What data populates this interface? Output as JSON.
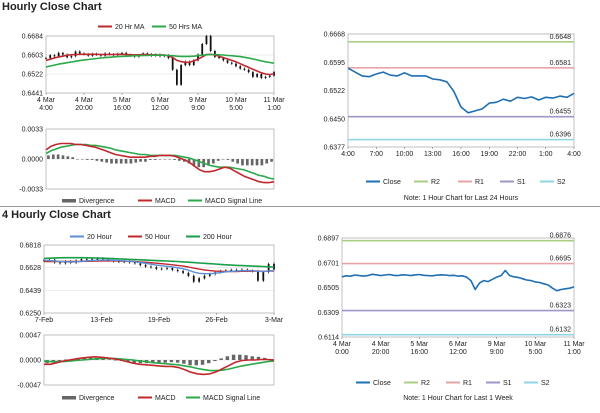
{
  "sections": {
    "hourly_title": "Hourly Close Chart",
    "four_hourly_title": "4 Hourly Close Chart"
  },
  "colors": {
    "close": "#1f6fb2",
    "ma_short": "#c0282d",
    "ma_long": "#2ba84a",
    "ma_200": "#1a9e4a",
    "ma20h": "#5b8fd8",
    "r2": "#a9cf83",
    "r1": "#e7a4a8",
    "s1": "#9b97c9",
    "s2": "#8ed4e3",
    "divergence": "#666666",
    "macd": "#c0282d",
    "signal": "#2ba84a",
    "candle": "#111111"
  },
  "chart_data": [
    {
      "id": "hourly_price_ma",
      "type": "line",
      "title": "",
      "legend": [
        "20 Hr MA",
        "50 Hrs MA"
      ],
      "y_ticks": [
        "0.6684",
        "0.6603",
        "0.6522",
        "0.6441"
      ],
      "ylim": [
        0.6441,
        0.6684
      ],
      "x_ticks": [
        [
          "4 Mar",
          "4:00"
        ],
        [
          "4 Mar",
          "20:00"
        ],
        [
          "5 Mar",
          "16:00"
        ],
        [
          "6 Mar",
          "12:00"
        ],
        [
          "9 Mar",
          "9:00"
        ],
        [
          "10 Mar",
          "5:00"
        ],
        [
          "11 Mar",
          "1:00"
        ]
      ],
      "close": [
        0.659,
        0.6602,
        0.6597,
        0.6612,
        0.6605,
        0.6593,
        0.6598,
        0.6618,
        0.661,
        0.6606,
        0.66,
        0.6608,
        0.6604,
        0.66,
        0.661,
        0.6606,
        0.6602,
        0.6608,
        0.6612,
        0.6604,
        0.66,
        0.6596,
        0.6603,
        0.661,
        0.6606,
        0.66,
        0.6605,
        0.6598,
        0.6602,
        0.659,
        0.654,
        0.6476,
        0.656,
        0.6575,
        0.656,
        0.658,
        0.6605,
        0.665,
        0.6684,
        0.662,
        0.6595,
        0.659,
        0.658,
        0.657,
        0.6566,
        0.6555,
        0.6545,
        0.654,
        0.653,
        0.651,
        0.6522,
        0.6505,
        0.651,
        0.6515,
        0.653
      ],
      "ma_short": [
        0.658,
        0.6585,
        0.659,
        0.6595,
        0.6598,
        0.6602,
        0.6604,
        0.6605,
        0.6606,
        0.6606,
        0.6606,
        0.6606,
        0.6606,
        0.6605,
        0.6605,
        0.6605,
        0.6605,
        0.6606,
        0.6606,
        0.6605,
        0.6604,
        0.6604,
        0.6604,
        0.6605,
        0.6605,
        0.6604,
        0.6604,
        0.6603,
        0.6603,
        0.66,
        0.6592,
        0.658,
        0.6575,
        0.6572,
        0.6572,
        0.6578,
        0.6585,
        0.6595,
        0.6605,
        0.6606,
        0.6603,
        0.6598,
        0.6592,
        0.6586,
        0.658,
        0.6574,
        0.6566,
        0.6558,
        0.655,
        0.6542,
        0.6535,
        0.6527,
        0.6522,
        0.652,
        0.6522
      ],
      "ma_long": [
        0.6552,
        0.6556,
        0.656,
        0.6564,
        0.6567,
        0.657,
        0.6573,
        0.6576,
        0.6579,
        0.6582,
        0.6584,
        0.6586,
        0.6588,
        0.659,
        0.6592,
        0.6593,
        0.6595,
        0.6596,
        0.6597,
        0.6598,
        0.6599,
        0.66,
        0.66,
        0.6601,
        0.6601,
        0.6602,
        0.6602,
        0.6602,
        0.6602,
        0.6601,
        0.66,
        0.6598,
        0.6597,
        0.6597,
        0.6597,
        0.6598,
        0.66,
        0.6602,
        0.6604,
        0.6605,
        0.6605,
        0.6604,
        0.6603,
        0.6601,
        0.66,
        0.6598,
        0.6596,
        0.6593,
        0.659,
        0.6586,
        0.6582,
        0.6578,
        0.6574,
        0.6571,
        0.6568
      ]
    },
    {
      "id": "hourly_macd",
      "type": "line",
      "legend": [
        "Divergence",
        "MACD",
        "MACD Signal Line"
      ],
      "y_ticks": [
        "0.0033",
        "0.0000",
        "-0.0033"
      ],
      "ylim": [
        -0.0033,
        0.0033
      ],
      "macd": [
        0.001,
        0.0014,
        0.0016,
        0.0017,
        0.0017,
        0.0017,
        0.0016,
        0.0016,
        0.0015,
        0.0014,
        0.0013,
        0.0011,
        0.0009,
        0.0007,
        0.0005,
        0.0004,
        0.0003,
        0.0002,
        0.0002,
        0.0002,
        0.0002,
        0.0003,
        0.0003,
        0.0004,
        0.0004,
        0.0004,
        0.0003,
        0.0001,
        -0.0001,
        -0.0004,
        -0.0008,
        -0.0012,
        -0.0014,
        -0.0014,
        -0.0013,
        -0.0011,
        -0.0009,
        -0.001,
        -0.0013,
        -0.0016,
        -0.0019,
        -0.0021,
        -0.0023,
        -0.0025,
        -0.0026,
        -0.0026,
        -0.0025
      ],
      "signal": [
        0.0006,
        0.0009,
        0.0011,
        0.0013,
        0.0014,
        0.0015,
        0.0016,
        0.0016,
        0.0016,
        0.0015,
        0.0015,
        0.0014,
        0.0013,
        0.0012,
        0.001,
        0.0009,
        0.0008,
        0.0007,
        0.0006,
        0.0005,
        0.0005,
        0.0004,
        0.0004,
        0.0004,
        0.0004,
        0.0004,
        0.0004,
        0.0003,
        0.0002,
        0.0001,
        -0.0001,
        -0.0003,
        -0.0005,
        -0.0007,
        -0.0008,
        -0.0009,
        -0.0009,
        -0.0009,
        -0.001,
        -0.0011,
        -0.0012,
        -0.0014,
        -0.0016,
        -0.0018,
        -0.0019,
        -0.0021,
        -0.0022
      ],
      "divergence": [
        0.0004,
        0.0005,
        0.0005,
        0.0004,
        0.0003,
        0.0002,
        0.0,
        0.0,
        -0.0001,
        -0.0001,
        -0.0002,
        -0.0003,
        -0.0004,
        -0.0005,
        -0.0005,
        -0.0005,
        -0.0005,
        -0.0005,
        -0.0004,
        -0.0003,
        -0.0003,
        -0.0001,
        -0.0001,
        0.0,
        0.0,
        0.0,
        -0.0001,
        -0.0002,
        -0.0003,
        -0.0005,
        -0.0007,
        -0.0009,
        -0.0009,
        -0.0007,
        -0.0005,
        -0.0002,
        0.0,
        -0.0001,
        -0.0003,
        -0.0005,
        -0.0007,
        -0.0007,
        -0.0007,
        -0.0007,
        -0.0007,
        -0.0005,
        -0.0003
      ]
    },
    {
      "id": "hourly_levels",
      "type": "line",
      "legend": [
        "Close",
        "R2",
        "R1",
        "S1",
        "S2"
      ],
      "y_ticks": [
        "0.6668",
        "0.6595",
        "0.6522",
        "0.6450",
        "0.6377"
      ],
      "ylim": [
        0.6377,
        0.6668
      ],
      "x_ticks": [
        "4:00",
        "7:00",
        "10:00",
        "13:00",
        "16:00",
        "19:00",
        "22:00",
        "1:00",
        "4:00"
      ],
      "levels": {
        "R2": 0.6648,
        "R1": 0.6581,
        "S1": 0.6455,
        "S2": 0.6396
      },
      "level_labels": {
        "R2": "0.6648",
        "R1": "0.6581",
        "S1": "0.6455",
        "S2": "0.6396"
      },
      "close": [
        0.658,
        0.657,
        0.656,
        0.6558,
        0.6565,
        0.657,
        0.6562,
        0.656,
        0.6568,
        0.656,
        0.656,
        0.656,
        0.6552,
        0.655,
        0.6545,
        0.652,
        0.648,
        0.6465,
        0.647,
        0.6475,
        0.649,
        0.6492,
        0.65,
        0.6495,
        0.6505,
        0.6502,
        0.6506,
        0.6498,
        0.6505,
        0.6503,
        0.6508,
        0.6505,
        0.6515
      ],
      "note": "Note: 1 Hour Chart for Last 24 Hours"
    },
    {
      "id": "four_hourly_price_ma",
      "type": "line",
      "legend": [
        "20 Hour",
        "50 Hour",
        "200 Hour"
      ],
      "y_ticks": [
        "0.6818",
        "0.6628",
        "0.6439",
        "0.6250"
      ],
      "ylim": [
        0.625,
        0.6818
      ],
      "x_ticks": [
        "7-Feb",
        "13-Feb",
        "19-Feb",
        "26-Feb",
        "3-Mar"
      ],
      "close": [
        0.669,
        0.6695,
        0.6672,
        0.6665,
        0.668,
        0.667,
        0.6688,
        0.67,
        0.6702,
        0.6695,
        0.6705,
        0.67,
        0.669,
        0.6682,
        0.6678,
        0.668,
        0.6673,
        0.6665,
        0.665,
        0.6638,
        0.6632,
        0.6618,
        0.662,
        0.6625,
        0.661,
        0.66,
        0.6585,
        0.656,
        0.6512,
        0.654,
        0.656,
        0.6575,
        0.659,
        0.66,
        0.6605,
        0.661,
        0.6608,
        0.6612,
        0.6603,
        0.66,
        0.652,
        0.6592,
        0.666,
        0.6615
      ],
      "ma_20": [
        0.669,
        0.6688,
        0.6684,
        0.668,
        0.6678,
        0.6676,
        0.6678,
        0.6682,
        0.6686,
        0.6688,
        0.669,
        0.6692,
        0.6692,
        0.669,
        0.6688,
        0.6686,
        0.6682,
        0.6678,
        0.6672,
        0.6665,
        0.6658,
        0.665,
        0.6644,
        0.664,
        0.6635,
        0.6628,
        0.662,
        0.6608,
        0.6592,
        0.6582,
        0.6578,
        0.6578,
        0.6582,
        0.6588,
        0.6594,
        0.6598,
        0.66,
        0.6603,
        0.6604,
        0.6604,
        0.6598,
        0.6596,
        0.6602,
        0.6605
      ],
      "ma_50": [
        0.668,
        0.668,
        0.668,
        0.668,
        0.668,
        0.668,
        0.668,
        0.6681,
        0.6682,
        0.6683,
        0.6684,
        0.6685,
        0.6685,
        0.6685,
        0.6684,
        0.6683,
        0.6682,
        0.668,
        0.6677,
        0.6674,
        0.667,
        0.6666,
        0.6662,
        0.6658,
        0.6653,
        0.6648,
        0.6642,
        0.6634,
        0.6625,
        0.6617,
        0.661,
        0.6604,
        0.66,
        0.6598,
        0.6597,
        0.6597,
        0.6597,
        0.6598,
        0.6599,
        0.66,
        0.6599,
        0.6598,
        0.66,
        0.6601
      ],
      "ma_200": [
        0.6706,
        0.6708,
        0.671,
        0.6711,
        0.6712,
        0.6712,
        0.6712,
        0.6712,
        0.6711,
        0.671,
        0.6709,
        0.6708,
        0.6706,
        0.6704,
        0.6702,
        0.67,
        0.6698,
        0.6696,
        0.6694,
        0.6692,
        0.669,
        0.6688,
        0.6686,
        0.6684,
        0.6682,
        0.668,
        0.6677,
        0.6674,
        0.6671,
        0.6668,
        0.6665,
        0.6662,
        0.6659,
        0.6656,
        0.6653,
        0.665,
        0.6648,
        0.6646,
        0.6644,
        0.6642,
        0.664,
        0.6638,
        0.6636,
        0.6634
      ]
    },
    {
      "id": "four_hourly_macd",
      "type": "line",
      "legend": [
        "Divergence",
        "MACD",
        "MACD Signal Line"
      ],
      "y_ticks": [
        "0.0047",
        "0.0000",
        "-0.0047"
      ],
      "ylim": [
        -0.0047,
        0.0047
      ],
      "macd": [
        -0.0008,
        -0.0008,
        -0.0005,
        -0.0002,
        0.0,
        0.0002,
        0.0004,
        0.0005,
        0.0006,
        0.0005,
        0.0004,
        0.0002,
        0.0,
        -0.0003,
        -0.0006,
        -0.0008,
        -0.0009,
        -0.001,
        -0.0011,
        -0.0012,
        -0.0012,
        -0.0014,
        -0.0018,
        -0.0023,
        -0.0026,
        -0.0027,
        -0.0026,
        -0.0022,
        -0.0016,
        -0.001,
        -0.0004,
        -0.0001,
        0.0,
        0.0,
        0.0001,
        0.0001,
        0.0
      ],
      "signal": [
        -0.0002,
        -0.0003,
        -0.0003,
        -0.0003,
        -0.0002,
        -0.0001,
        0.0,
        0.0001,
        0.0002,
        0.0003,
        0.0003,
        0.0003,
        0.0002,
        0.0001,
        0.0,
        -0.0002,
        -0.0003,
        -0.0005,
        -0.0006,
        -0.0007,
        -0.0008,
        -0.0009,
        -0.0011,
        -0.0013,
        -0.0016,
        -0.0018,
        -0.002,
        -0.002,
        -0.0019,
        -0.0017,
        -0.0014,
        -0.0011,
        -0.0009,
        -0.0007,
        -0.0005,
        -0.0003,
        -0.0002
      ],
      "divergence": [
        -0.0006,
        -0.0005,
        -0.0002,
        0.0001,
        0.0002,
        0.0003,
        0.0004,
        0.0004,
        0.0004,
        0.0002,
        0.0001,
        -0.0001,
        -0.0002,
        -0.0004,
        -0.0006,
        -0.0006,
        -0.0006,
        -0.0005,
        -0.0005,
        -0.0005,
        -0.0004,
        -0.0005,
        -0.0007,
        -0.001,
        -0.001,
        -0.0009,
        -0.0006,
        -0.0002,
        0.0003,
        0.0007,
        0.001,
        0.001,
        0.0009,
        0.0007,
        0.0006,
        0.0004,
        0.0002
      ]
    },
    {
      "id": "four_hourly_levels",
      "type": "line",
      "legend": [
        "Close",
        "R2",
        "R1",
        "S1",
        "S2"
      ],
      "y_ticks": [
        "0.6897",
        "0.6701",
        "0.6505",
        "0.6309",
        "0.6114"
      ],
      "ylim": [
        0.6114,
        0.6897
      ],
      "x_ticks": [
        [
          "4 Mar",
          "0:00"
        ],
        [
          "4 Mar",
          "20:00"
        ],
        [
          "5 Mar",
          "16:00"
        ],
        [
          "6 Mar",
          "12:00"
        ],
        [
          "9 Mar",
          "9:00"
        ],
        [
          "10 Mar",
          "5:00"
        ],
        [
          "11 Mar",
          "1:00"
        ]
      ],
      "levels": {
        "R2": 0.6876,
        "R1": 0.6695,
        "S1": 0.6323,
        "S2": 0.6132
      },
      "level_labels": {
        "R2": "0.6876",
        "R1": "0.6695",
        "S1": "0.6323",
        "S2": "0.6132"
      },
      "close": [
        0.659,
        0.6598,
        0.6595,
        0.6604,
        0.66,
        0.6596,
        0.66,
        0.661,
        0.6606,
        0.66,
        0.6604,
        0.6608,
        0.6602,
        0.66,
        0.6606,
        0.6604,
        0.66,
        0.6605,
        0.6608,
        0.6602,
        0.66,
        0.6598,
        0.6603,
        0.6606,
        0.6604,
        0.66,
        0.6602,
        0.6596,
        0.6598,
        0.6588,
        0.656,
        0.649,
        0.654,
        0.656,
        0.6552,
        0.657,
        0.6588,
        0.66,
        0.664,
        0.66,
        0.659,
        0.6585,
        0.6575,
        0.6565,
        0.656,
        0.655,
        0.6545,
        0.6535,
        0.6525,
        0.65,
        0.648,
        0.649,
        0.6495,
        0.65,
        0.651
      ],
      "note": "Note: 1 Hour Chart for Last 1 Week"
    }
  ]
}
